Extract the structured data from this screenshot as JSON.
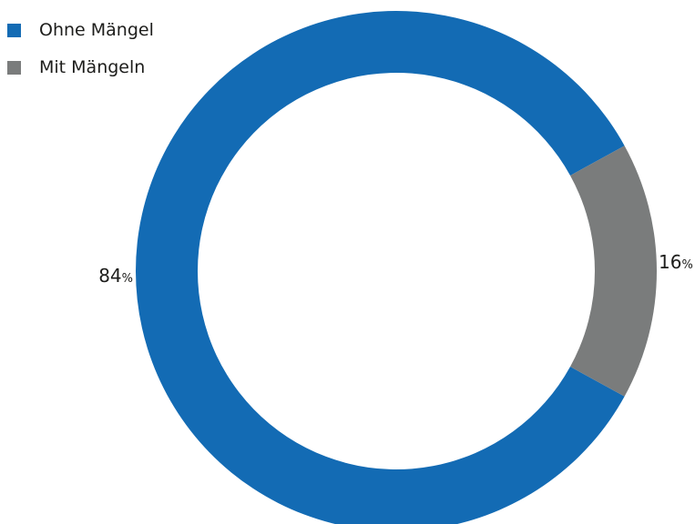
{
  "chart_data": {
    "type": "pie",
    "donut": true,
    "legend_position": "top-left",
    "slices": [
      {
        "name": "Ohne Mängel",
        "value": 84,
        "label_value": "84",
        "label_unit": "%",
        "color": "#136bb4"
      },
      {
        "name": "Mit Mängeln",
        "value": 16,
        "label_value": "16",
        "label_unit": "%",
        "color": "#7a7c7c"
      }
    ]
  }
}
